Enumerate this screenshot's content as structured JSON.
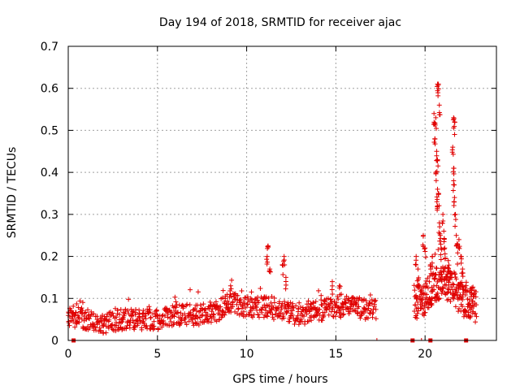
{
  "chart_data": {
    "type": "scatter",
    "title": "Day 194 of 2018, SRMTID for receiver ajac",
    "xlabel": "GPS time / hours",
    "ylabel": "SRMTID / TECUs",
    "xlim": [
      0,
      24
    ],
    "ylim": [
      0,
      0.7
    ],
    "x_ticks": [
      0,
      5,
      10,
      15,
      20
    ],
    "y_ticks": [
      0,
      0.1,
      0.2,
      0.3,
      0.4,
      0.5,
      0.6,
      0.7
    ],
    "x_tick_labels": [
      "0",
      "5",
      "10",
      "15",
      "20"
    ],
    "y_tick_labels": [
      "0",
      "0.1",
      "0.2",
      "0.3",
      "0.4",
      "0.5",
      "0.6",
      "0.7"
    ],
    "grid": true,
    "marker": "plus",
    "color": "#e00000",
    "series": [
      {
        "name": "SRMTID",
        "segments": [
          {
            "start": 0.0,
            "end": 17.3,
            "step": 0.05,
            "levels": [
              [
                0,
                0.06
              ],
              [
                1,
                0.05
              ],
              [
                2,
                0.04
              ],
              [
                3,
                0.05
              ],
              [
                5,
                0.05
              ],
              [
                6,
                0.06
              ],
              [
                8,
                0.06
              ],
              [
                9,
                0.09
              ],
              [
                10,
                0.08
              ],
              [
                11,
                0.08
              ],
              [
                12,
                0.07
              ],
              [
                13,
                0.06
              ],
              [
                14,
                0.07
              ],
              [
                15,
                0.08
              ],
              [
                16,
                0.08
              ],
              [
                17.3,
                0.07
              ]
            ],
            "spread": 0.025
          },
          {
            "start": 19.4,
            "end": 22.9,
            "step": 0.03,
            "levels": [
              [
                19.4,
                0.09
              ],
              [
                20,
                0.1
              ],
              [
                20.5,
                0.13
              ],
              [
                21,
                0.14
              ],
              [
                21.5,
                0.13
              ],
              [
                22,
                0.1
              ],
              [
                22.9,
                0.08
              ]
            ],
            "spread": 0.04
          }
        ],
        "peaks": [
          {
            "x": 11.2,
            "y": 0.225
          },
          {
            "x": 11.3,
            "y": 0.17
          },
          {
            "x": 11.15,
            "y": 0.2
          },
          {
            "x": 12.1,
            "y": 0.2
          },
          {
            "x": 12.2,
            "y": 0.15
          },
          {
            "x": 12.0,
            "y": 0.18
          },
          {
            "x": 9.1,
            "y": 0.13
          },
          {
            "x": 14.8,
            "y": 0.14
          },
          {
            "x": 15.2,
            "y": 0.13
          },
          {
            "x": 19.5,
            "y": 0.2
          },
          {
            "x": 19.6,
            "y": 0.17
          },
          {
            "x": 19.9,
            "y": 0.25
          },
          {
            "x": 20.0,
            "y": 0.22
          },
          {
            "x": 20.7,
            "y": 0.61
          },
          {
            "x": 20.75,
            "y": 0.61
          },
          {
            "x": 20.8,
            "y": 0.56
          },
          {
            "x": 20.5,
            "y": 0.54
          },
          {
            "x": 20.6,
            "y": 0.53
          },
          {
            "x": 20.55,
            "y": 0.48
          },
          {
            "x": 20.65,
            "y": 0.45
          },
          {
            "x": 20.7,
            "y": 0.43
          },
          {
            "x": 20.6,
            "y": 0.4
          },
          {
            "x": 20.7,
            "y": 0.36
          },
          {
            "x": 20.75,
            "y": 0.35
          },
          {
            "x": 20.7,
            "y": 0.32
          },
          {
            "x": 20.8,
            "y": 0.28
          },
          {
            "x": 20.85,
            "y": 0.25
          },
          {
            "x": 20.9,
            "y": 0.22
          },
          {
            "x": 21.0,
            "y": 0.3
          },
          {
            "x": 21.05,
            "y": 0.26
          },
          {
            "x": 21.1,
            "y": 0.22
          },
          {
            "x": 21.6,
            "y": 0.53
          },
          {
            "x": 21.65,
            "y": 0.52
          },
          {
            "x": 21.55,
            "y": 0.46
          },
          {
            "x": 21.6,
            "y": 0.41
          },
          {
            "x": 21.6,
            "y": 0.38
          },
          {
            "x": 21.65,
            "y": 0.34
          },
          {
            "x": 21.7,
            "y": 0.3
          },
          {
            "x": 21.75,
            "y": 0.25
          },
          {
            "x": 21.8,
            "y": 0.23
          },
          {
            "x": 21.9,
            "y": 0.24
          },
          {
            "x": 22.0,
            "y": 0.2
          },
          {
            "x": 22.1,
            "y": 0.17
          },
          {
            "x": 20.3,
            "y": 0.18
          },
          {
            "x": 20.4,
            "y": 0.2
          },
          {
            "x": 21.3,
            "y": 0.19
          }
        ]
      }
    ],
    "zero_markers": [
      0.3,
      19.3,
      20.3,
      22.3
    ],
    "isolated_markers": [
      17.3,
      19.8
    ]
  }
}
